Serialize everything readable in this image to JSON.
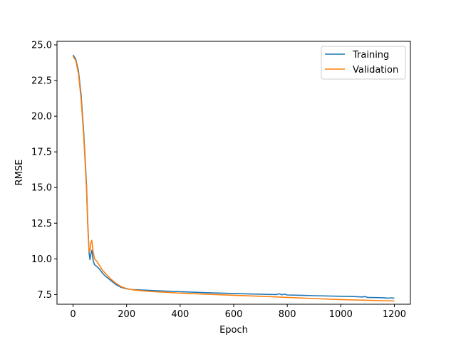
{
  "chart_data": {
    "type": "line",
    "title": "",
    "xlabel": "Epoch",
    "ylabel": "RMSE",
    "xlim": [
      -60,
      1260
    ],
    "ylim": [
      6.82,
      25.25
    ],
    "xticks": [
      0,
      200,
      400,
      600,
      800,
      1000,
      1200
    ],
    "xtick_labels": [
      "0",
      "200",
      "400",
      "600",
      "800",
      "1000",
      "1200"
    ],
    "yticks": [
      7.5,
      10.0,
      12.5,
      15.0,
      17.5,
      20.0,
      22.5,
      25.0
    ],
    "ytick_labels": [
      "7.5",
      "10.0",
      "12.5",
      "15.0",
      "17.5",
      "20.0",
      "22.5",
      "25.0"
    ],
    "grid": false,
    "legend_position": "top-right",
    "series": [
      {
        "name": "Training",
        "color": "#1f77b4",
        "x": [
          0,
          10,
          20,
          30,
          40,
          50,
          55,
          60,
          63,
          66,
          70,
          75,
          80,
          90,
          100,
          110,
          120,
          140,
          160,
          180,
          200,
          220,
          250,
          300,
          400,
          500,
          600,
          700,
          760,
          770,
          780,
          790,
          800,
          850,
          900,
          1000,
          1050,
          1080,
          1090,
          1100,
          1150,
          1180,
          1190,
          1200
        ],
        "y": [
          24.3,
          24.0,
          23.2,
          21.5,
          18.8,
          15.3,
          12.5,
          10.4,
          9.95,
          10.3,
          10.6,
          9.9,
          9.6,
          9.45,
          9.25,
          9.0,
          8.8,
          8.5,
          8.2,
          8.0,
          7.9,
          7.85,
          7.82,
          7.78,
          7.7,
          7.63,
          7.57,
          7.52,
          7.5,
          7.55,
          7.48,
          7.53,
          7.47,
          7.45,
          7.42,
          7.38,
          7.36,
          7.33,
          7.36,
          7.3,
          7.28,
          7.25,
          7.27,
          7.24
        ]
      },
      {
        "name": "Validation",
        "color": "#ff7f0e",
        "x": [
          0,
          10,
          20,
          30,
          40,
          50,
          55,
          60,
          63,
          66,
          70,
          75,
          80,
          90,
          100,
          110,
          120,
          140,
          160,
          180,
          200,
          220,
          250,
          300,
          400,
          500,
          600,
          700,
          800,
          900,
          1000,
          1050,
          1100,
          1150,
          1200
        ],
        "y": [
          24.2,
          23.9,
          23.0,
          21.2,
          18.5,
          15.0,
          12.2,
          10.5,
          10.6,
          11.1,
          11.3,
          10.5,
          10.0,
          9.8,
          9.5,
          9.2,
          9.0,
          8.6,
          8.3,
          8.05,
          7.92,
          7.84,
          7.77,
          7.7,
          7.6,
          7.52,
          7.45,
          7.38,
          7.3,
          7.22,
          7.15,
          7.12,
          7.1,
          7.07,
          7.05
        ]
      }
    ]
  }
}
